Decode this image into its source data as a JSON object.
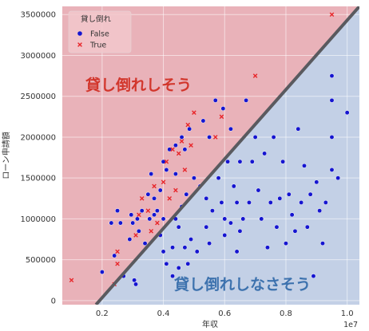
{
  "chart_data": {
    "type": "scatter",
    "title": "",
    "xlabel": "年収",
    "ylabel": "ローン申請額",
    "x_offset_label": "1e7",
    "xlim": [
      700000,
      10400000
    ],
    "ylim": [
      -50000,
      3600000
    ],
    "xticks": [
      2000000,
      4000000,
      6000000,
      8000000,
      10000000
    ],
    "xtick_labels": [
      "0.2",
      "0.4",
      "0.6",
      "0.8",
      "1.0"
    ],
    "yticks": [
      0,
      500000,
      1000000,
      1500000,
      2000000,
      2500000,
      3000000,
      3500000
    ],
    "ytick_labels": [
      "0",
      "500000",
      "1000000",
      "1500000",
      "2000000",
      "2500000",
      "3000000",
      "3500000"
    ],
    "grid": true,
    "legend": {
      "title": "貸し倒れ",
      "position": "top-left",
      "entries": [
        {
          "label": "False",
          "marker": "circle",
          "color": "#1515d0"
        },
        {
          "label": "True",
          "marker": "x",
          "color": "#e8262a"
        }
      ]
    },
    "boundary_line": {
      "points": [
        [
          1800000,
          -50000
        ],
        [
          10400000,
          3600000
        ]
      ],
      "color": "#5a5a5f"
    },
    "regions": [
      {
        "label": "貸し倒れしそう",
        "side": "upper-left",
        "fill": "#e9b2b9",
        "text_color": "#d2362c"
      },
      {
        "label": "貸し倒れしなさそう",
        "side": "lower-right",
        "fill": "#c3d0e6",
        "text_color": "#3d72ae"
      }
    ],
    "series": [
      {
        "name": "False",
        "marker": "circle",
        "color": "#1515d0",
        "points": [
          [
            2000000,
            350000
          ],
          [
            2300000,
            950000
          ],
          [
            2400000,
            550000
          ],
          [
            2500000,
            1100000
          ],
          [
            2600000,
            950000
          ],
          [
            2700000,
            300000
          ],
          [
            2900000,
            750000
          ],
          [
            2950000,
            1050000
          ],
          [
            3000000,
            950000
          ],
          [
            3050000,
            250000
          ],
          [
            3100000,
            200000
          ],
          [
            3150000,
            1000000
          ],
          [
            3200000,
            850000
          ],
          [
            3300000,
            1100000
          ],
          [
            3400000,
            700000
          ],
          [
            3500000,
            1300000
          ],
          [
            3550000,
            1000000
          ],
          [
            3600000,
            1550000
          ],
          [
            3700000,
            1050000
          ],
          [
            3700000,
            1250000
          ],
          [
            3800000,
            1100000
          ],
          [
            3900000,
            800000
          ],
          [
            3900000,
            1350000
          ],
          [
            4000000,
            600000
          ],
          [
            4000000,
            1700000
          ],
          [
            4000000,
            1000000
          ],
          [
            4100000,
            450000
          ],
          [
            4100000,
            1600000
          ],
          [
            4200000,
            1850000
          ],
          [
            4300000,
            300000
          ],
          [
            4300000,
            650000
          ],
          [
            4400000,
            1000000
          ],
          [
            4400000,
            1550000
          ],
          [
            4400000,
            1900000
          ],
          [
            4500000,
            400000
          ],
          [
            4500000,
            900000
          ],
          [
            4600000,
            1150000
          ],
          [
            4600000,
            2000000
          ],
          [
            4700000,
            650000
          ],
          [
            4700000,
            1850000
          ],
          [
            4750000,
            1300000
          ],
          [
            4800000,
            450000
          ],
          [
            4850000,
            2100000
          ],
          [
            4900000,
            750000
          ],
          [
            5000000,
            1500000
          ],
          [
            5100000,
            600000
          ],
          [
            5200000,
            1400000
          ],
          [
            5300000,
            2200000
          ],
          [
            5400000,
            900000
          ],
          [
            5400000,
            1250000
          ],
          [
            5500000,
            700000
          ],
          [
            5500000,
            2000000
          ],
          [
            5600000,
            1100000
          ],
          [
            5700000,
            2450000
          ],
          [
            5800000,
            1500000
          ],
          [
            5900000,
            1200000
          ],
          [
            5950000,
            2350000
          ],
          [
            6000000,
            800000
          ],
          [
            6000000,
            1000000
          ],
          [
            6100000,
            1700000
          ],
          [
            6200000,
            950000
          ],
          [
            6200000,
            2100000
          ],
          [
            6300000,
            1400000
          ],
          [
            6400000,
            600000
          ],
          [
            6400000,
            1200000
          ],
          [
            6500000,
            850000
          ],
          [
            6500000,
            1700000
          ],
          [
            6600000,
            1000000
          ],
          [
            6700000,
            2450000
          ],
          [
            6800000,
            1200000
          ],
          [
            6900000,
            1700000
          ],
          [
            7000000,
            2000000
          ],
          [
            7100000,
            1350000
          ],
          [
            7200000,
            1000000
          ],
          [
            7300000,
            1800000
          ],
          [
            7400000,
            650000
          ],
          [
            7500000,
            1200000
          ],
          [
            7600000,
            2000000
          ],
          [
            7700000,
            900000
          ],
          [
            7800000,
            1250000
          ],
          [
            7900000,
            1700000
          ],
          [
            8000000,
            700000
          ],
          [
            8100000,
            1300000
          ],
          [
            8200000,
            1050000
          ],
          [
            8300000,
            850000
          ],
          [
            8400000,
            2100000
          ],
          [
            8500000,
            1200000
          ],
          [
            8600000,
            1650000
          ],
          [
            8700000,
            900000
          ],
          [
            8800000,
            1300000
          ],
          [
            8900000,
            300000
          ],
          [
            9000000,
            1450000
          ],
          [
            9100000,
            1100000
          ],
          [
            9200000,
            700000
          ],
          [
            9300000,
            1200000
          ],
          [
            9500000,
            1600000
          ],
          [
            9500000,
            2000000
          ],
          [
            9500000,
            2450000
          ],
          [
            9500000,
            2750000
          ],
          [
            9700000,
            1500000
          ],
          [
            10000000,
            2300000
          ]
        ]
      },
      {
        "name": "True",
        "marker": "x",
        "color": "#e8262a",
        "points": [
          [
            1000000,
            250000
          ],
          [
            2400000,
            200000
          ],
          [
            2500000,
            600000
          ],
          [
            2500000,
            450000
          ],
          [
            3100000,
            800000
          ],
          [
            3200000,
            1050000
          ],
          [
            3300000,
            1250000
          ],
          [
            3500000,
            1100000
          ],
          [
            3600000,
            850000
          ],
          [
            3700000,
            1400000
          ],
          [
            3800000,
            950000
          ],
          [
            4000000,
            1450000
          ],
          [
            4100000,
            1700000
          ],
          [
            4200000,
            1250000
          ],
          [
            4300000,
            1850000
          ],
          [
            4400000,
            1350000
          ],
          [
            4500000,
            1800000
          ],
          [
            4600000,
            1950000
          ],
          [
            4700000,
            1600000
          ],
          [
            4800000,
            2150000
          ],
          [
            4900000,
            1900000
          ],
          [
            5000000,
            2300000
          ],
          [
            5700000,
            2000000
          ],
          [
            5900000,
            2250000
          ],
          [
            7000000,
            2750000
          ],
          [
            9500000,
            3500000
          ]
        ]
      }
    ]
  }
}
